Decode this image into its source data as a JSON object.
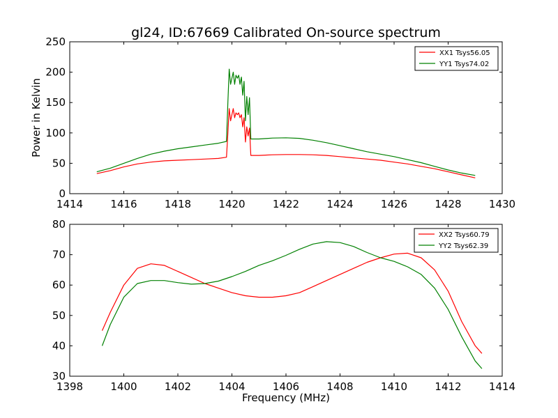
{
  "chart_data": [
    {
      "type": "line",
      "title": "gl24, ID:67669 Calibrated On-source spectrum",
      "xlabel": "",
      "ylabel": "Power in Kelvin",
      "xlim": [
        1414,
        1430
      ],
      "ylim": [
        0,
        250
      ],
      "xticks": [
        "1414",
        "1416",
        "1418",
        "1420",
        "1422",
        "1424",
        "1426",
        "1428",
        "1430"
      ],
      "yticks": [
        "0",
        "50",
        "100",
        "150",
        "200",
        "250"
      ],
      "legend_position": "top-right",
      "series": [
        {
          "name": "XX1 Tsys56.05",
          "color": "#ff0000",
          "x": [
            1415.0,
            1415.5,
            1416.0,
            1416.5,
            1417.0,
            1417.5,
            1418.0,
            1418.5,
            1419.0,
            1419.5,
            1419.8,
            1419.85,
            1419.9,
            1419.95,
            1420.0,
            1420.05,
            1420.1,
            1420.15,
            1420.2,
            1420.25,
            1420.3,
            1420.35,
            1420.4,
            1420.45,
            1420.5,
            1420.55,
            1420.6,
            1420.65,
            1420.7,
            1421.0,
            1421.5,
            1422.0,
            1422.5,
            1423.0,
            1423.5,
            1424.0,
            1424.5,
            1425.0,
            1425.5,
            1426.0,
            1426.5,
            1427.0,
            1427.5,
            1428.0,
            1428.5,
            1429.0
          ],
          "y": [
            33,
            38,
            44,
            49,
            52,
            54,
            55,
            56,
            57,
            58,
            60,
            100,
            140,
            120,
            130,
            140,
            125,
            133,
            130,
            133,
            125,
            130,
            110,
            125,
            85,
            110,
            95,
            108,
            63,
            63,
            64,
            64.5,
            64.5,
            64,
            63,
            61,
            59,
            57,
            55,
            52,
            49,
            45,
            41,
            36,
            31,
            26
          ]
        },
        {
          "name": "YY1 Tsys74.02",
          "color": "#008000",
          "x": [
            1415.0,
            1415.5,
            1416.0,
            1416.5,
            1417.0,
            1417.5,
            1418.0,
            1418.5,
            1419.0,
            1419.5,
            1419.8,
            1419.85,
            1419.9,
            1419.95,
            1420.0,
            1420.05,
            1420.1,
            1420.15,
            1420.2,
            1420.25,
            1420.3,
            1420.35,
            1420.4,
            1420.45,
            1420.5,
            1420.55,
            1420.6,
            1420.65,
            1420.7,
            1421.0,
            1421.5,
            1422.0,
            1422.5,
            1423.0,
            1423.5,
            1424.0,
            1424.5,
            1425.0,
            1425.5,
            1426.0,
            1426.5,
            1427.0,
            1427.5,
            1428.0,
            1428.5,
            1429.0
          ],
          "y": [
            36,
            42,
            50,
            58,
            65,
            70,
            74,
            77,
            80,
            83,
            86,
            150,
            205,
            180,
            190,
            200,
            180,
            195,
            190,
            195,
            180,
            192,
            162,
            185,
            120,
            160,
            130,
            158,
            90,
            90,
            91.5,
            92,
            91,
            88,
            84,
            79,
            74,
            69,
            65,
            61,
            56,
            51,
            45,
            39,
            34,
            30
          ]
        }
      ]
    },
    {
      "type": "line",
      "title": "",
      "xlabel": "Frequency (MHz)",
      "ylabel": "",
      "xlim": [
        1398,
        1414
      ],
      "ylim": [
        30,
        80
      ],
      "xticks": [
        "1398",
        "1400",
        "1402",
        "1404",
        "1406",
        "1408",
        "1410",
        "1412",
        "1414"
      ],
      "yticks": [
        "30",
        "40",
        "50",
        "60",
        "70",
        "80"
      ],
      "legend_position": "top-right",
      "series": [
        {
          "name": "XX2 Tsys60.79",
          "color": "#ff0000",
          "x": [
            1399.2,
            1399.5,
            1400.0,
            1400.5,
            1401.0,
            1401.5,
            1402.0,
            1402.5,
            1403.0,
            1403.5,
            1404.0,
            1404.5,
            1405.0,
            1405.5,
            1406.0,
            1406.5,
            1407.0,
            1407.5,
            1408.0,
            1408.5,
            1409.0,
            1409.5,
            1410.0,
            1410.5,
            1411.0,
            1411.5,
            1412.0,
            1412.5,
            1413.0,
            1413.25
          ],
          "y": [
            45,
            51,
            60,
            65.5,
            67,
            66.5,
            64.5,
            62.5,
            60.5,
            59,
            57.5,
            56.5,
            56,
            56,
            56.5,
            57.5,
            59.5,
            61.5,
            63.5,
            65.5,
            67.5,
            69,
            70.2,
            70.5,
            69,
            65,
            58,
            48,
            40,
            37.5
          ]
        },
        {
          "name": "YY2 Tsys62.39",
          "color": "#008000",
          "x": [
            1399.2,
            1399.5,
            1400.0,
            1400.5,
            1401.0,
            1401.5,
            1402.0,
            1402.5,
            1403.0,
            1403.5,
            1404.0,
            1404.5,
            1405.0,
            1405.5,
            1406.0,
            1406.5,
            1407.0,
            1407.5,
            1408.0,
            1408.5,
            1409.0,
            1409.5,
            1410.0,
            1410.5,
            1411.0,
            1411.5,
            1412.0,
            1412.5,
            1413.0,
            1413.25
          ],
          "y": [
            40,
            47,
            56,
            60.5,
            61.5,
            61.5,
            60.8,
            60.3,
            60.5,
            61.3,
            62.8,
            64.5,
            66.5,
            68,
            69.8,
            71.8,
            73.5,
            74.3,
            74,
            72.7,
            70.7,
            69,
            67.8,
            66,
            63.5,
            59,
            52,
            43,
            35,
            32.5
          ]
        }
      ]
    }
  ]
}
